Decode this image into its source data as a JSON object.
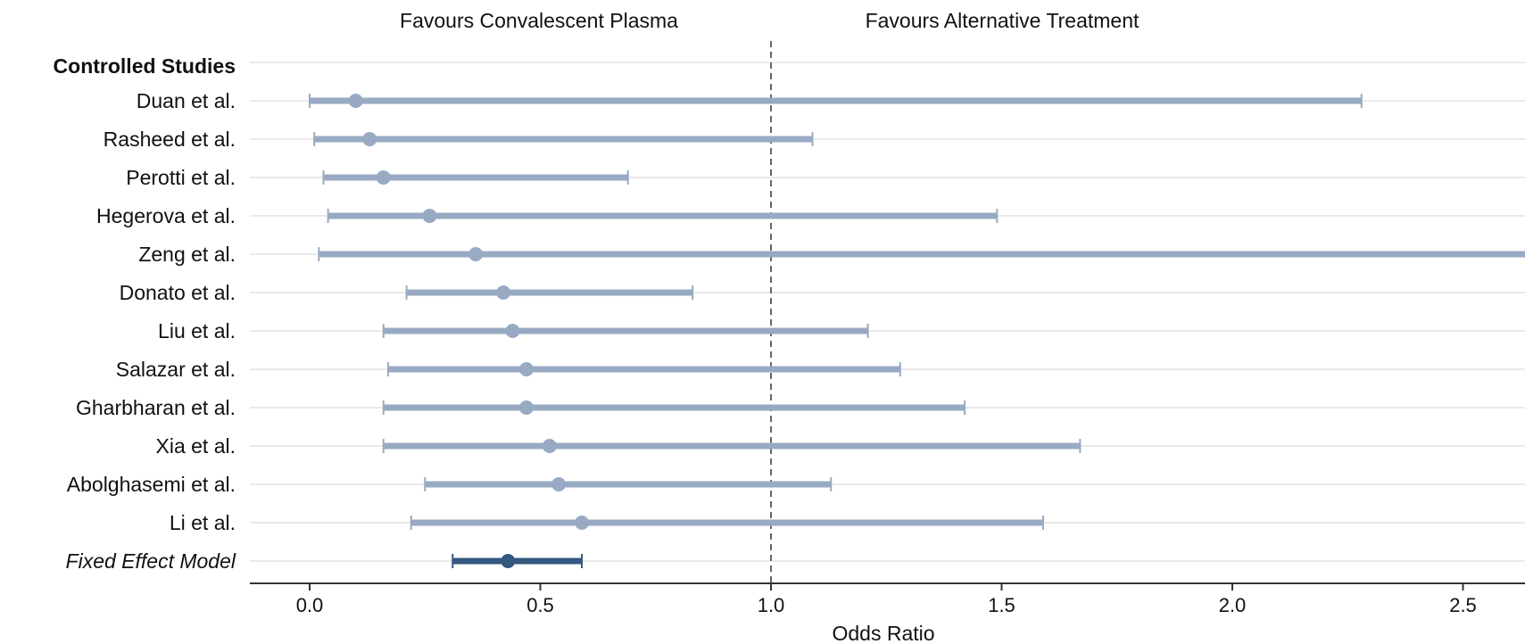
{
  "chart_data": {
    "type": "forest",
    "xlabel": "Odds Ratio",
    "xlim": [
      -0.13,
      2.63
    ],
    "xticks": [
      "0.0",
      "0.5",
      "1.0",
      "1.5",
      "2.0",
      "2.5"
    ],
    "reference_line": 1.0,
    "favours_left": "Favours Convalescent Plasma",
    "favours_right": "Favours Alternative Treatment",
    "group_heading": "Controlled Studies",
    "studies": [
      {
        "name": "Duan et al.",
        "or": 0.1,
        "lower": 0.0,
        "upper": 2.28
      },
      {
        "name": "Rasheed et al.",
        "or": 0.13,
        "lower": 0.01,
        "upper": 1.09
      },
      {
        "name": "Perotti et al.",
        "or": 0.16,
        "lower": 0.03,
        "upper": 0.69
      },
      {
        "name": "Hegerova et al.",
        "or": 0.26,
        "lower": 0.04,
        "upper": 1.49
      },
      {
        "name": "Zeng et al.",
        "or": 0.36,
        "lower": 0.02,
        "upper": 2.7
      },
      {
        "name": "Donato et al.",
        "or": 0.42,
        "lower": 0.21,
        "upper": 0.83
      },
      {
        "name": "Liu et al.",
        "or": 0.44,
        "lower": 0.16,
        "upper": 1.21
      },
      {
        "name": "Salazar et al.",
        "or": 0.47,
        "lower": 0.17,
        "upper": 1.28
      },
      {
        "name": "Gharbharan et al.",
        "or": 0.47,
        "lower": 0.16,
        "upper": 1.42
      },
      {
        "name": "Xia et al.",
        "or": 0.52,
        "lower": 0.16,
        "upper": 1.67
      },
      {
        "name": "Abolghasemi et al.",
        "or": 0.54,
        "lower": 0.25,
        "upper": 1.13
      },
      {
        "name": "Li et al.",
        "or": 0.59,
        "lower": 0.22,
        "upper": 1.59
      }
    ],
    "pooled": {
      "name": "Fixed Effect Model",
      "or": 0.43,
      "lower": 0.31,
      "upper": 0.59
    },
    "colors": {
      "study": "#98aac3",
      "pooled": "#34587f",
      "grid": "#e4e4e4",
      "reference": "#666666",
      "axis": "#333333"
    }
  }
}
